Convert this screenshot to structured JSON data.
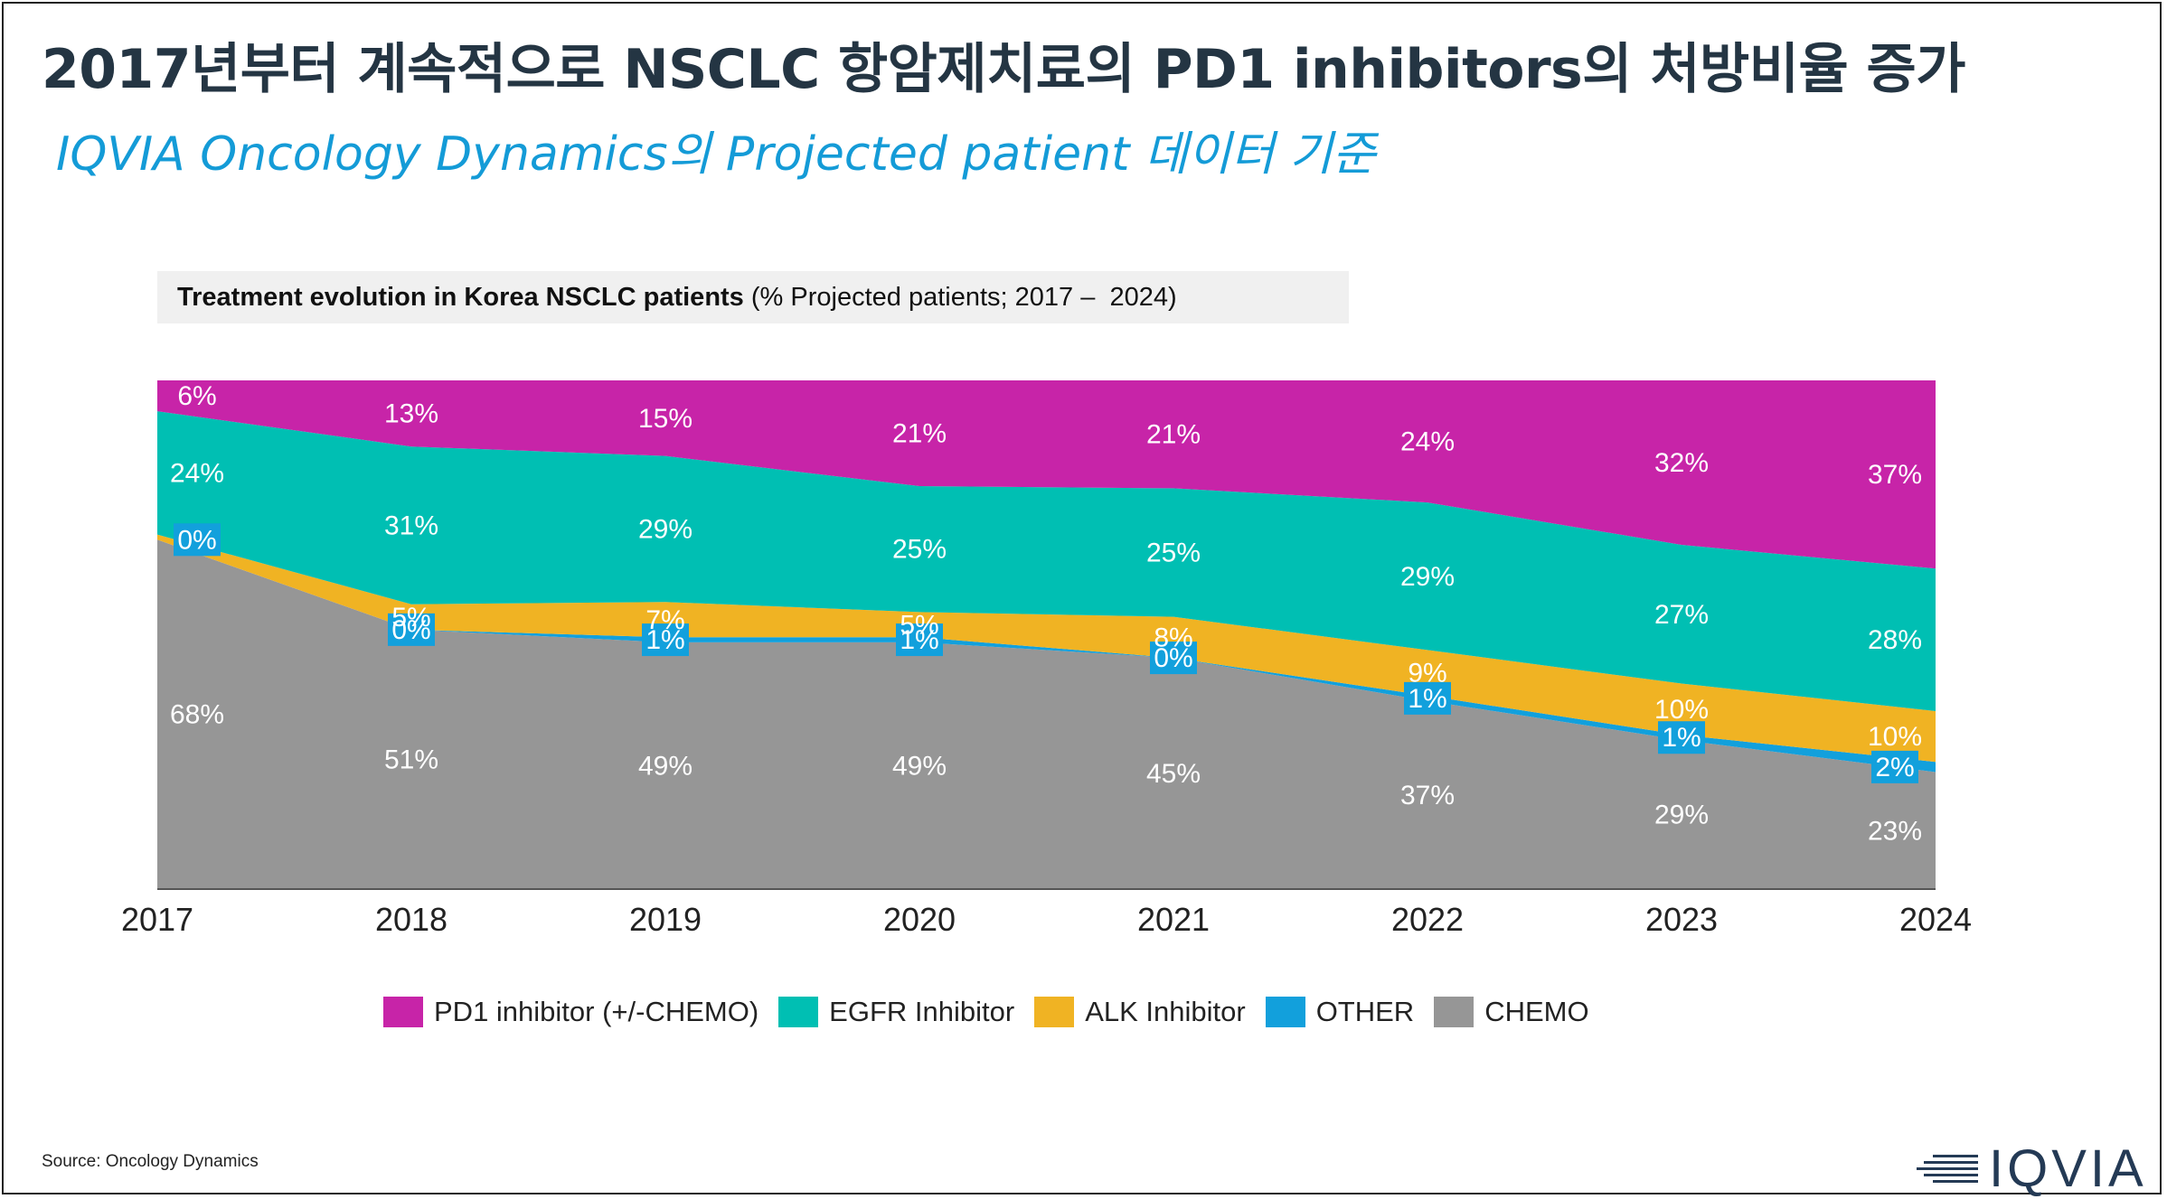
{
  "title": "2017년부터 계속적으로 NSCLC 항암제치료의 PD1 inhibitors의 처방비율 증가",
  "subtitle": "IQVIA Oncology Dynamics의 Projected patient 데이터 기준",
  "chart_header": {
    "bold": "Treatment evolution in Korea NSCLC patients",
    "normal": " (% Projected patients; 2017 –  2024)"
  },
  "chart_data": {
    "type": "area",
    "stacked": true,
    "percent": true,
    "x": [
      "2017",
      "2018",
      "2019",
      "2020",
      "2021",
      "2022",
      "2023",
      "2024"
    ],
    "ylim": [
      0,
      100
    ],
    "series": [
      {
        "name": "CHEMO",
        "color": "#969696",
        "values": [
          68,
          51,
          49,
          49,
          45,
          37,
          29,
          23
        ],
        "labels": [
          "68%",
          "51%",
          "49%",
          "49%",
          "45%",
          "37%",
          "29%",
          "23%"
        ]
      },
      {
        "name": "OTHER",
        "color": "#12a0dc",
        "values": [
          0,
          0,
          1,
          1,
          0,
          1,
          1,
          2
        ],
        "labels": [
          "0%",
          "0%",
          "1%",
          "1%",
          "0%",
          "1%",
          "1%",
          "2%"
        ]
      },
      {
        "name": "ALK Inhibitor",
        "color": "#f0b323",
        "values": [
          1,
          5,
          7,
          5,
          8,
          9,
          10,
          10
        ],
        "labels": [
          "",
          "5%",
          "7%",
          "5%",
          "8%",
          "9%",
          "10%",
          "10%"
        ]
      },
      {
        "name": "EGFR Inhibitor",
        "color": "#00bfb3",
        "values": [
          24,
          31,
          29,
          25,
          25,
          29,
          27,
          28
        ],
        "labels": [
          "24%",
          "31%",
          "29%",
          "25%",
          "25%",
          "29%",
          "27%",
          "28%"
        ]
      },
      {
        "name": "PD1 inhibitor (+/-CHEMO)",
        "color": "#c724a8",
        "values": [
          6,
          13,
          15,
          21,
          21,
          24,
          32,
          37
        ],
        "labels": [
          "6%",
          "13%",
          "15%",
          "21%",
          "21%",
          "24%",
          "32%",
          "37%"
        ]
      }
    ],
    "legend": [
      "PD1 inhibitor (+/-CHEMO)",
      "EGFR Inhibitor",
      "ALK Inhibitor",
      "OTHER",
      "CHEMO"
    ],
    "legend_position": "bottom"
  },
  "source": "Source: Oncology Dynamics",
  "logo": "IQVIA",
  "colors": {
    "title": "#243543",
    "subtitle": "#149bd7",
    "logo": "#243a55"
  }
}
